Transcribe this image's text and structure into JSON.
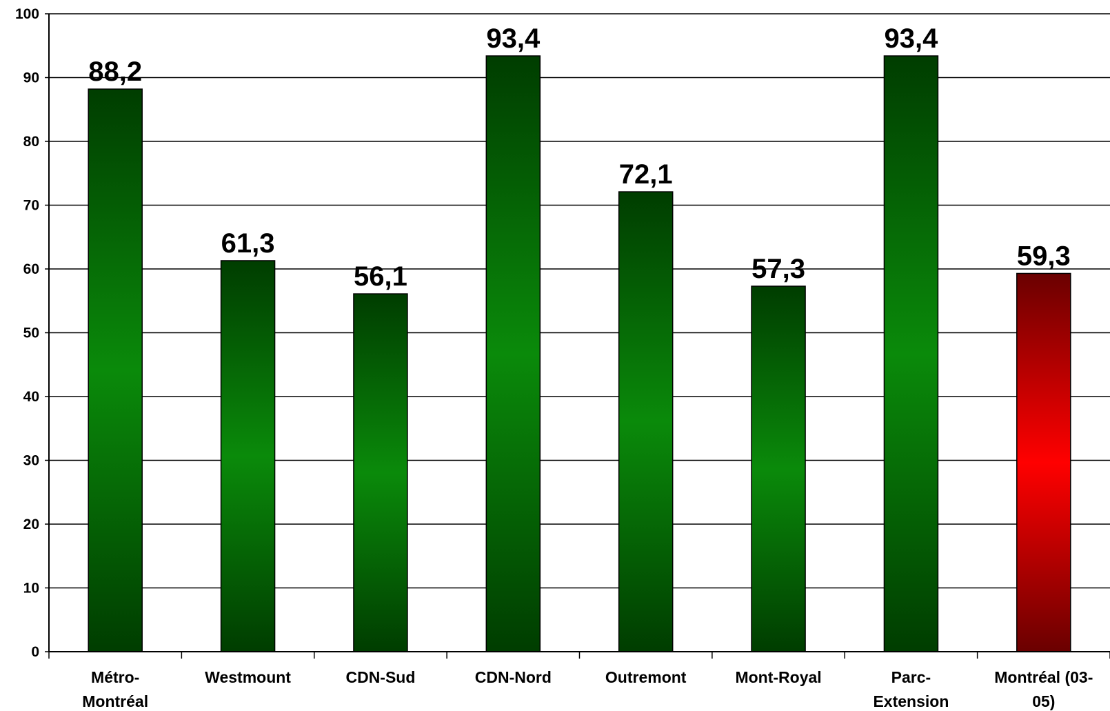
{
  "chart_data": {
    "type": "bar",
    "categories": [
      "Métro-Montréal",
      "Westmount",
      "CDN-Sud",
      "CDN-Nord",
      "Outremont",
      "Mont-Royal",
      "Parc-Extension",
      "Montréal (03-05)"
    ],
    "category_lines": [
      [
        "Métro-",
        "Montréal"
      ],
      [
        "Westmount"
      ],
      [
        "CDN-Sud"
      ],
      [
        "CDN-Nord"
      ],
      [
        "Outremont"
      ],
      [
        "Mont-Royal"
      ],
      [
        "Parc-",
        "Extension"
      ],
      [
        "Montréal (03-",
        "05)"
      ]
    ],
    "values": [
      88.2,
      61.3,
      56.1,
      93.4,
      72.1,
      57.3,
      93.4,
      59.3
    ],
    "data_labels": [
      "88,2",
      "61,3",
      "56,1",
      "93,4",
      "72,1",
      "57,3",
      "93,4",
      "59,3"
    ],
    "bar_colors": [
      "green",
      "green",
      "green",
      "green",
      "green",
      "green",
      "green",
      "red"
    ],
    "colors": {
      "green_dark": "#003d00",
      "green_light": "#0a8a0a",
      "red_dark": "#6a0000",
      "red_light": "#ff0000"
    },
    "title": "",
    "xlabel": "",
    "ylabel": "",
    "ylim": [
      0,
      100
    ],
    "yticks": [
      0,
      10,
      20,
      30,
      40,
      50,
      60,
      70,
      80,
      90,
      100
    ],
    "grid": true,
    "legend": "none"
  }
}
